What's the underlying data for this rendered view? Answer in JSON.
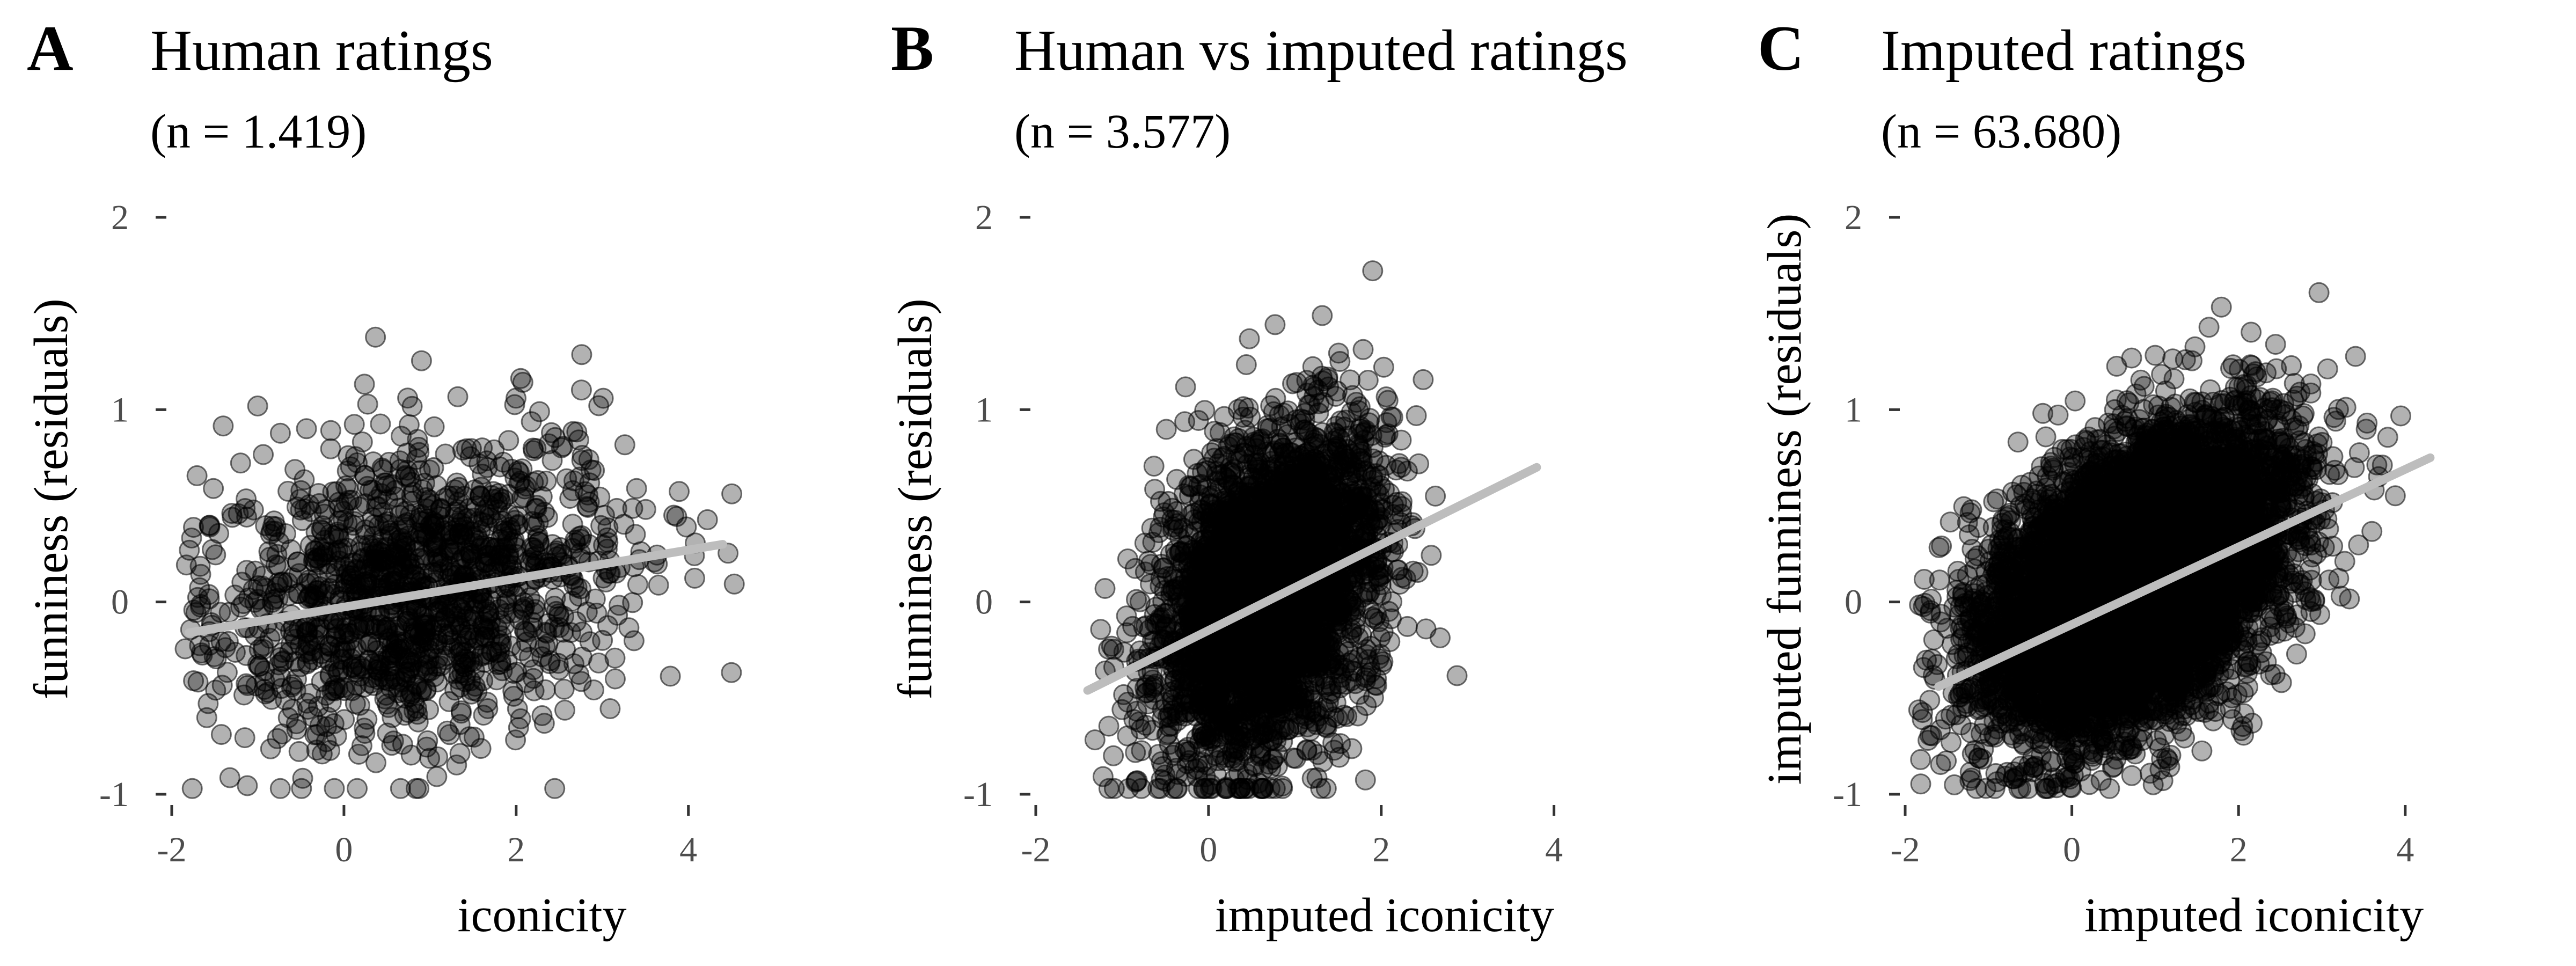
{
  "colors": {
    "points": "#000000",
    "trend_line": "#bdbdbd",
    "tick_text": "#4d4d4d"
  },
  "chart_data": [
    {
      "type": "scatter",
      "panel": "A",
      "title": "Human ratings",
      "subtitle": "(n = 1.419)",
      "xlabel": "iconicity",
      "ylabel": "funniness (residuals)",
      "xlim": [
        -2,
        4.7
      ],
      "ylim": [
        -1,
        2
      ],
      "xticks": [
        -2,
        0,
        2,
        4
      ],
      "yticks": [
        -1,
        0,
        1,
        2
      ],
      "grid": false,
      "point_count": 1419,
      "point_alpha": 0.3,
      "x_center": 0.9,
      "x_spread": 1.2,
      "y_center": 0.05,
      "y_spread": 0.38,
      "trend": {
        "x": [
          -1.8,
          4.4
        ],
        "y": [
          -0.16,
          0.3
        ]
      }
    },
    {
      "type": "scatter",
      "panel": "B",
      "title": "Human vs imputed ratings",
      "subtitle": "(n = 3.577)",
      "xlabel": "imputed iconicity",
      "ylabel": "funniness (residuals)",
      "xlim": [
        -2,
        4.4
      ],
      "ylim": [
        -1,
        2
      ],
      "xticks": [
        -2,
        0,
        2,
        4
      ],
      "yticks": [
        -1,
        0,
        1,
        2
      ],
      "grid": false,
      "point_count": 3577,
      "point_alpha": 0.3,
      "x_center": 0.7,
      "x_spread": 0.65,
      "y_center": 0.05,
      "y_spread": 0.4,
      "trend": {
        "x": [
          -1.4,
          3.8
        ],
        "y": [
          -0.46,
          0.7
        ]
      }
    },
    {
      "type": "scatter",
      "panel": "C",
      "title": "Imputed ratings",
      "subtitle": "(n = 63.680)",
      "xlabel": "imputed iconicity",
      "ylabel": "imputed funniness (residuals)",
      "xlim": [
        -2,
        4.6
      ],
      "ylim": [
        -1,
        2
      ],
      "xticks": [
        -2,
        0,
        2,
        4
      ],
      "yticks": [
        -1,
        0,
        1,
        2
      ],
      "grid": false,
      "point_count": 63680,
      "point_alpha": 0.3,
      "x_center": 0.8,
      "x_spread": 0.85,
      "y_center": 0.12,
      "y_spread": 0.33,
      "trend": {
        "x": [
          -1.6,
          4.3
        ],
        "y": [
          -0.44,
          0.75
        ]
      }
    }
  ]
}
